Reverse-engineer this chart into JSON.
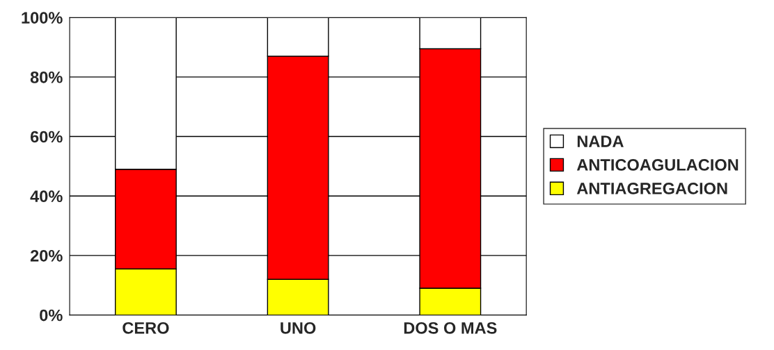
{
  "chart_data": {
    "type": "bar",
    "stacked": true,
    "categories": [
      "CERO",
      "UNO",
      "DOS O MAS"
    ],
    "series": [
      {
        "name": "ANTIAGREGACION",
        "color": "#ffff00",
        "values": [
          15.5,
          12,
          9
        ]
      },
      {
        "name": "ANTICOAGULACION",
        "color": "#ff0000",
        "values": [
          33.5,
          75,
          80.5
        ]
      },
      {
        "name": "NADA",
        "color": "#ffffff",
        "values": [
          51,
          13,
          10.5
        ]
      }
    ],
    "ylim": [
      0,
      100
    ],
    "yticks": [
      {
        "value": 0,
        "label": "0%"
      },
      {
        "value": 20,
        "label": "20%"
      },
      {
        "value": 40,
        "label": "40%"
      },
      {
        "value": 60,
        "label": "60%"
      },
      {
        "value": 80,
        "label": "80%"
      },
      {
        "value": 100,
        "label": "100%"
      }
    ],
    "grid": "y",
    "legend": "right"
  }
}
